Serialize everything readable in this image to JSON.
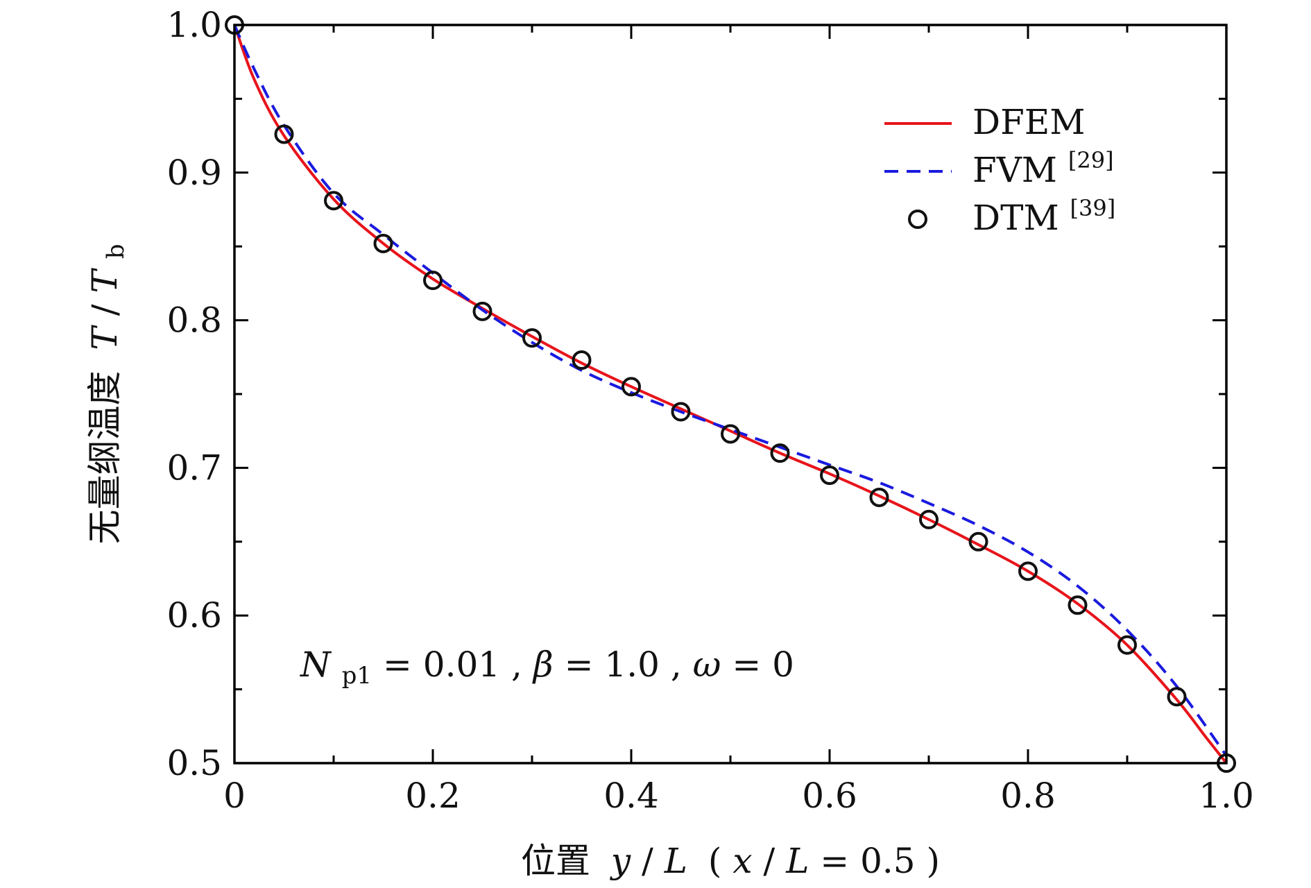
{
  "chart_data": {
    "type": "line",
    "title": "",
    "xlabel": {
      "prefix": "位置",
      "var": "y",
      "slash": "/",
      "denom": "L",
      "cond_open": "(",
      "cond_var": "x",
      "cond_slash": "/",
      "cond_denom": "L",
      "cond_eq": " = ",
      "cond_value": "0.5",
      "cond_close": ")"
    },
    "ylabel": {
      "prefix": "无量纲温度",
      "var": "T",
      "slash": "/",
      "denom": "T",
      "denom_sub": "b"
    },
    "xlim": [
      0,
      1.0
    ],
    "ylim": [
      0.5,
      1.0
    ],
    "x_ticks": [
      {
        "value": 0,
        "label": "0"
      },
      {
        "value": 0.2,
        "label": "0.2"
      },
      {
        "value": 0.4,
        "label": "0.4"
      },
      {
        "value": 0.6,
        "label": "0.6"
      },
      {
        "value": 0.8,
        "label": "0.8"
      },
      {
        "value": 1.0,
        "label": "1.0"
      }
    ],
    "y_ticks": [
      {
        "value": 0.5,
        "label": "0.5"
      },
      {
        "value": 0.6,
        "label": "0.6"
      },
      {
        "value": 0.7,
        "label": "0.7"
      },
      {
        "value": 0.8,
        "label": "0.8"
      },
      {
        "value": 0.9,
        "label": "0.9"
      },
      {
        "value": 1.0,
        "label": "1.0"
      }
    ],
    "x_minor_ticks": [
      0.1,
      0.3,
      0.5,
      0.7,
      0.9
    ],
    "y_minor_ticks": [
      0.55,
      0.65,
      0.75,
      0.85,
      0.95
    ],
    "grid": false,
    "legend_position": "top-right",
    "annotation": {
      "n_var": "N",
      "n_sub": "p1",
      "n_value": "0.01",
      "beta_var": "β",
      "beta_value": "1.0",
      "omega_var": "ω",
      "omega_value": "0",
      "eq": " = ",
      "sep": ", "
    },
    "series": [
      {
        "name": "DFEM",
        "name_sup": "",
        "style": "solid",
        "color": "#e8141b",
        "x": [
          0,
          0.02,
          0.05,
          0.1,
          0.15,
          0.2,
          0.25,
          0.3,
          0.35,
          0.4,
          0.45,
          0.5,
          0.55,
          0.6,
          0.65,
          0.7,
          0.75,
          0.8,
          0.85,
          0.9,
          0.95,
          0.98,
          1.0
        ],
        "y": [
          1.0,
          0.963,
          0.925,
          0.882,
          0.852,
          0.828,
          0.808,
          0.789,
          0.771,
          0.755,
          0.74,
          0.725,
          0.71,
          0.696,
          0.681,
          0.665,
          0.648,
          0.63,
          0.608,
          0.58,
          0.543,
          0.517,
          0.5
        ]
      },
      {
        "name": "FVM",
        "name_sup": "[29]",
        "style": "dashed",
        "color": "#1a1adf",
        "x": [
          0,
          0.02,
          0.05,
          0.1,
          0.15,
          0.2,
          0.25,
          0.3,
          0.35,
          0.4,
          0.45,
          0.5,
          0.55,
          0.6,
          0.65,
          0.7,
          0.75,
          0.8,
          0.85,
          0.9,
          0.95,
          1.0
        ],
        "y": [
          1.0,
          0.97,
          0.932,
          0.886,
          0.858,
          0.832,
          0.807,
          0.785,
          0.766,
          0.751,
          0.738,
          0.726,
          0.714,
          0.702,
          0.69,
          0.676,
          0.661,
          0.643,
          0.62,
          0.59,
          0.552,
          0.505
        ]
      },
      {
        "name": "DTM",
        "name_sup": "[39]",
        "style": "markers",
        "color": "#111111",
        "x": [
          0,
          0.05,
          0.1,
          0.15,
          0.2,
          0.25,
          0.3,
          0.35,
          0.4,
          0.45,
          0.5,
          0.55,
          0.6,
          0.65,
          0.7,
          0.75,
          0.8,
          0.85,
          0.9,
          0.95,
          1.0
        ],
        "y": [
          1.0,
          0.926,
          0.881,
          0.852,
          0.827,
          0.806,
          0.788,
          0.773,
          0.755,
          0.738,
          0.723,
          0.71,
          0.695,
          0.68,
          0.665,
          0.65,
          0.63,
          0.607,
          0.58,
          0.545,
          0.5
        ]
      }
    ]
  }
}
